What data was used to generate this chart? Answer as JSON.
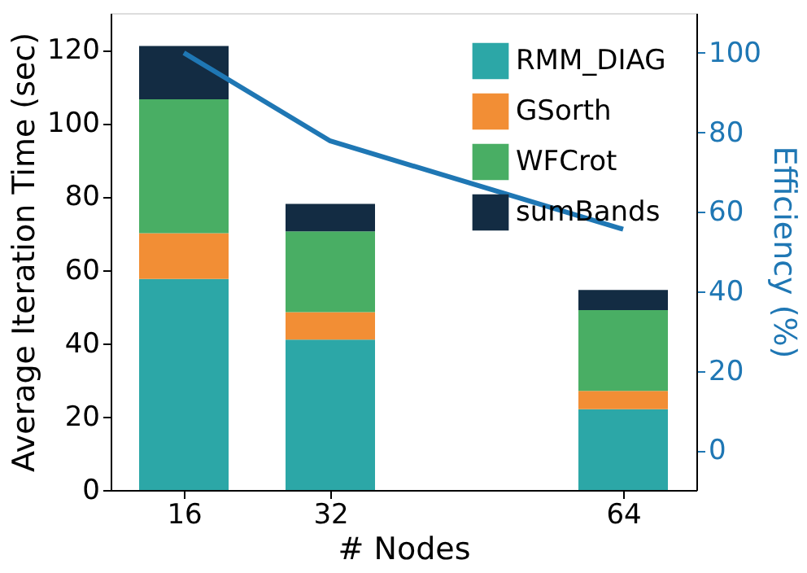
{
  "chart_data": {
    "type": "bar",
    "stacked": true,
    "xlabel": "# Nodes",
    "ylabel": "Average Iteration Time (sec)",
    "y2label": "Efficiency (%)",
    "x": [
      16,
      32,
      64
    ],
    "xlim": [
      8,
      72
    ],
    "xticks": [
      16,
      32,
      64
    ],
    "ylim": [
      0,
      130
    ],
    "yticks": [
      0,
      20,
      40,
      60,
      80,
      100,
      120
    ],
    "y2lim": [
      -10,
      110
    ],
    "y2ticks": [
      0,
      20,
      40,
      60,
      80,
      100
    ],
    "legend": "top right",
    "grid": false,
    "series": [
      {
        "name": "RMM_DIAG",
        "color": "#2ca7a7",
        "values": [
          57.5,
          41,
          22
        ]
      },
      {
        "name": "GSorth",
        "color": "#f28e35",
        "values": [
          12.5,
          7.5,
          5
        ]
      },
      {
        "name": "WFCrot",
        "color": "#49ae64",
        "values": [
          36.5,
          22,
          22
        ]
      },
      {
        "name": "sumBands",
        "color": "#132c43",
        "values": [
          14.5,
          7.5,
          5.5
        ]
      },
      {
        "type": "line",
        "axis": "y2",
        "color": "#1f77b4",
        "values": [
          100,
          77.8,
          55.6
        ]
      }
    ]
  }
}
